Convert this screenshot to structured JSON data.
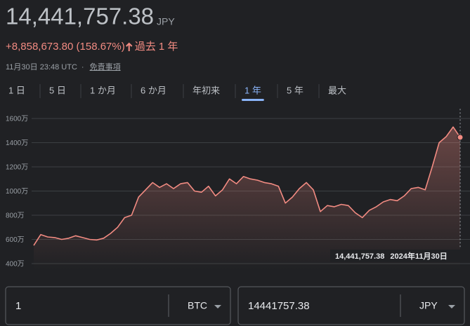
{
  "header": {
    "price": "14,441,757.38",
    "currency": "JPY",
    "change": "+8,858,673.80 (158.67%)",
    "period": "過去 1 年",
    "timestamp": "11月30日 23:48 UTC",
    "separator": "·",
    "disclaimer": "免責事項"
  },
  "tabs": {
    "items": [
      "1 日",
      "5 日",
      "1 か月",
      "6 か月",
      "年初来",
      "1 年",
      "5 年",
      "最大"
    ],
    "active": 5
  },
  "chart_data": {
    "type": "line",
    "color": "#f28b82",
    "grid": true,
    "values": [
      5500000,
      6400000,
      6200000,
      6150000,
      6000000,
      6100000,
      6300000,
      6150000,
      6000000,
      5950000,
      6100000,
      6500000,
      7000000,
      7800000,
      8000000,
      9500000,
      10100000,
      10700000,
      10300000,
      10600000,
      10200000,
      10600000,
      10700000,
      10000000,
      9900000,
      10400000,
      9600000,
      10100000,
      11000000,
      10600000,
      11200000,
      11000000,
      10900000,
      10700000,
      10600000,
      10400000,
      9000000,
      9500000,
      10200000,
      10700000,
      10100000,
      8300000,
      8800000,
      8700000,
      8900000,
      8800000,
      8200000,
      7800000,
      8400000,
      8700000,
      9100000,
      9300000,
      9200000,
      9600000,
      10200000,
      10300000,
      10100000,
      12000000,
      14000000,
      14500000,
      15300000,
      14441757.38
    ],
    "ylim": [
      3500000,
      16800000
    ],
    "yticks": [
      {
        "value": 4000000,
        "label": "400万"
      },
      {
        "value": 6000000,
        "label": "600万"
      },
      {
        "value": 8000000,
        "label": "800万"
      },
      {
        "value": 10000000,
        "label": "1000万"
      },
      {
        "value": 12000000,
        "label": "1200万"
      },
      {
        "value": 14000000,
        "label": "1400万"
      },
      {
        "value": 16000000,
        "label": "1600万"
      }
    ],
    "hover": {
      "value_label": "14,441,757.38",
      "date": "2024年11月30日"
    }
  },
  "converter": {
    "amount": "1",
    "from": "BTC",
    "converted": "14441757.38",
    "to": "JPY"
  }
}
